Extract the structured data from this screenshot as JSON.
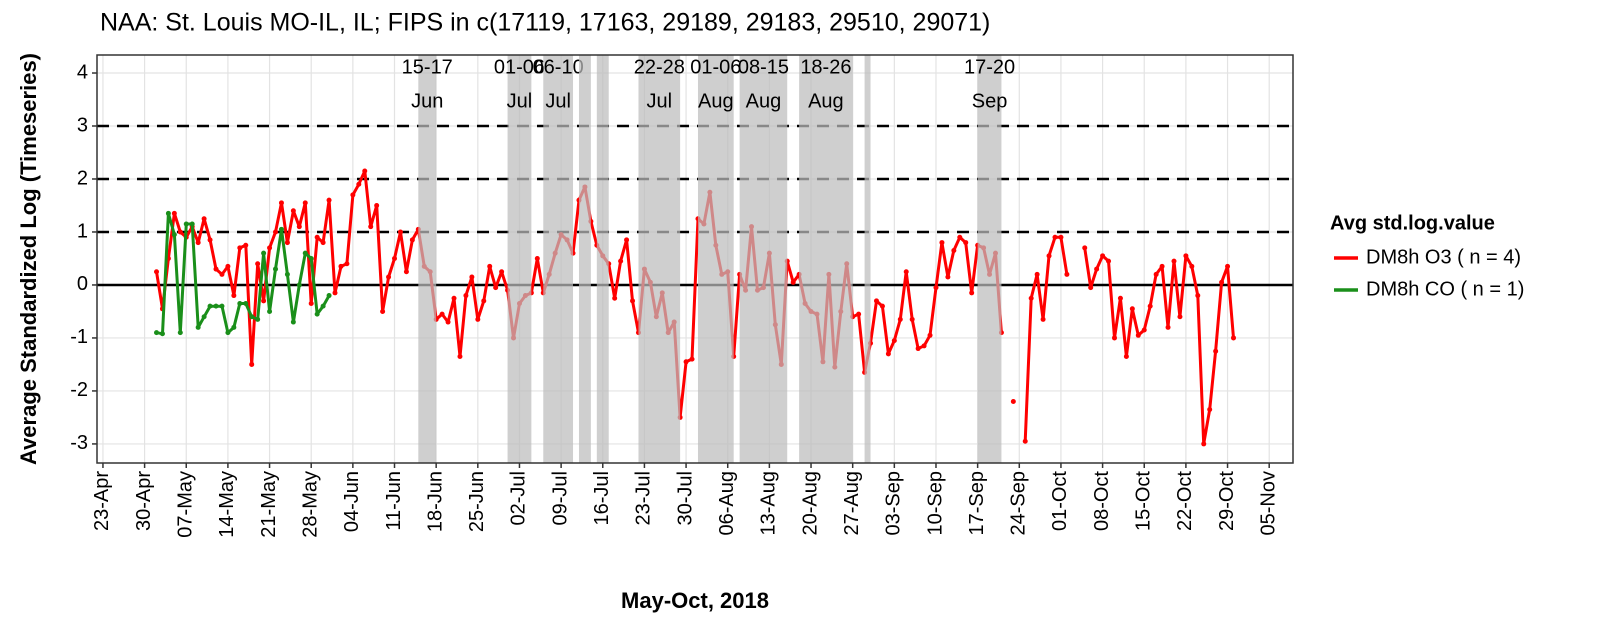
{
  "chart_data": {
    "type": "line",
    "title": "NAA: St. Louis MO-IL, IL; FIPS in c(17119, 17163, 29189, 29183, 29510, 29071)",
    "x_label": "May-Oct, 2018",
    "y_label": "Average Standardized Log (Timeseries)",
    "legend_title": "Avg std.log.value",
    "legend_position": "right",
    "grid": true,
    "xlim": [
      "04-22",
      "11-09"
    ],
    "ylim": [
      -3.36,
      4.34
    ],
    "yticks": [
      -3,
      -2,
      -1,
      0,
      1,
      2,
      3,
      4
    ],
    "xticks": [
      {
        "value": "04-23",
        "label": "23-Apr"
      },
      {
        "value": "04-30",
        "label": "30-Apr"
      },
      {
        "value": "05-07",
        "label": "07-May"
      },
      {
        "value": "05-14",
        "label": "14-May"
      },
      {
        "value": "05-21",
        "label": "21-May"
      },
      {
        "value": "05-28",
        "label": "28-May"
      },
      {
        "value": "06-04",
        "label": "04-Jun"
      },
      {
        "value": "06-11",
        "label": "11-Jun"
      },
      {
        "value": "06-18",
        "label": "18-Jun"
      },
      {
        "value": "06-25",
        "label": "25-Jun"
      },
      {
        "value": "07-02",
        "label": "02-Jul"
      },
      {
        "value": "07-09",
        "label": "09-Jul"
      },
      {
        "value": "07-16",
        "label": "16-Jul"
      },
      {
        "value": "07-23",
        "label": "23-Jul"
      },
      {
        "value": "07-30",
        "label": "30-Jul"
      },
      {
        "value": "08-06",
        "label": "06-Aug"
      },
      {
        "value": "08-13",
        "label": "13-Aug"
      },
      {
        "value": "08-20",
        "label": "20-Aug"
      },
      {
        "value": "08-27",
        "label": "27-Aug"
      },
      {
        "value": "09-03",
        "label": "03-Sep"
      },
      {
        "value": "09-10",
        "label": "10-Sep"
      },
      {
        "value": "09-17",
        "label": "17-Sep"
      },
      {
        "value": "09-24",
        "label": "24-Sep"
      },
      {
        "value": "10-01",
        "label": "01-Oct"
      },
      {
        "value": "10-08",
        "label": "08-Oct"
      },
      {
        "value": "10-15",
        "label": "15-Oct"
      },
      {
        "value": "10-22",
        "label": "22-Oct"
      },
      {
        "value": "10-29",
        "label": "29-Oct"
      },
      {
        "value": "11-05",
        "label": "05-Nov"
      }
    ],
    "reference_lines": {
      "solid": [
        0
      ],
      "dashed": [
        1,
        2,
        3
      ]
    },
    "bands": [
      {
        "start": "06-15",
        "end": "06-17",
        "range": "15-17",
        "month": "Jun"
      },
      {
        "start": "06-30",
        "end": "07-03",
        "range": "01-06",
        "month": "Jul"
      },
      {
        "start": "07-06",
        "end": "07-10",
        "range": "06-10",
        "month": "Jul"
      },
      {
        "start": "07-12",
        "end": "07-13",
        "range": null,
        "month": null
      },
      {
        "start": "07-15",
        "end": "07-16",
        "range": null,
        "month": null
      },
      {
        "start": "07-22",
        "end": "07-28",
        "range": "22-28",
        "month": "Jul"
      },
      {
        "start": "08-01",
        "end": "08-06",
        "range": "01-06",
        "month": "Aug"
      },
      {
        "start": "08-08",
        "end": "08-15",
        "range": "08-15",
        "month": "Aug"
      },
      {
        "start": "08-18",
        "end": "08-26",
        "range": "18-26",
        "month": "Aug"
      },
      {
        "start": "08-29",
        "end": "08-29",
        "range": null,
        "month": null
      },
      {
        "start": "09-17",
        "end": "09-20",
        "range": "17-20",
        "month": "Sep"
      }
    ],
    "series": [
      {
        "name": "DM8h O3 ( n = 4)",
        "color": "#ff0000",
        "x": [
          "05-02",
          "05-03",
          "05-04",
          "05-05",
          "05-06",
          "05-07",
          "05-08",
          "05-09",
          "05-10",
          "05-11",
          "05-12",
          "05-13",
          "05-14",
          "05-15",
          "05-16",
          "05-17",
          "05-18",
          "05-19",
          "05-20",
          "05-21",
          "05-22",
          "05-23",
          "05-24",
          "05-25",
          "05-26",
          "05-27",
          "05-28",
          "05-29",
          "05-30",
          "05-31",
          "06-01",
          "06-02",
          "06-03",
          "06-04",
          "06-05",
          "06-06",
          "06-07",
          "06-08",
          "06-09",
          "06-10",
          "06-11",
          "06-12",
          "06-13",
          "06-14",
          "06-15",
          "06-16",
          "06-17",
          "06-18",
          "06-19",
          "06-20",
          "06-21",
          "06-22",
          "06-23",
          "06-24",
          "06-25",
          "06-26",
          "06-27",
          "06-28",
          "06-29",
          "06-30",
          "07-01",
          "07-02",
          "07-03",
          "07-04",
          "07-05",
          "07-06",
          "07-07",
          "07-08",
          "07-09",
          "07-10",
          "07-11",
          "07-12",
          "07-13",
          "07-14",
          "07-15",
          "07-16",
          "07-17",
          "07-18",
          "07-19",
          "07-20",
          "07-21",
          "07-22",
          "07-23",
          "07-24",
          "07-25",
          "07-26",
          "07-27",
          "07-28",
          "07-29",
          "07-30",
          "07-31",
          "08-01",
          "08-02",
          "08-03",
          "08-04",
          "08-05",
          "08-06",
          "08-07",
          "08-08",
          "08-09",
          "08-10",
          "08-11",
          "08-12",
          "08-13",
          "08-14",
          "08-15",
          "08-16",
          "08-17",
          "08-18",
          "08-19",
          "08-20",
          "08-21",
          "08-22",
          "08-23",
          "08-24",
          "08-25",
          "08-26",
          "08-27",
          "08-28",
          "08-29",
          "08-30",
          "08-31",
          "09-01",
          "09-02",
          "09-03",
          "09-04",
          "09-05",
          "09-06",
          "09-07",
          "09-08",
          "09-09",
          "09-10",
          "09-11",
          "09-12",
          "09-13",
          "09-14",
          "09-15",
          "09-16",
          "09-17",
          "09-18",
          "09-19",
          "09-20",
          "09-21",
          "09-22",
          "09-23",
          "09-24",
          "09-25",
          "09-26",
          "09-27",
          "09-28",
          "09-29",
          "09-30",
          "10-01",
          "10-02",
          "10-03",
          "10-04",
          "10-05",
          "10-06",
          "10-07",
          "10-08",
          "10-09",
          "10-10",
          "10-11",
          "10-12",
          "10-13",
          "10-14",
          "10-15",
          "10-16",
          "10-17",
          "10-18",
          "10-19",
          "10-20",
          "10-21",
          "10-22",
          "10-23",
          "10-24",
          "10-25",
          "10-26",
          "10-27",
          "10-28",
          "10-29",
          "10-30"
        ],
        "values": [
          0.25,
          -0.45,
          0.5,
          1.35,
          1.0,
          0.9,
          1.1,
          0.8,
          1.25,
          0.85,
          0.3,
          0.2,
          0.35,
          -0.2,
          0.7,
          0.75,
          -1.5,
          0.4,
          -0.3,
          0.7,
          1.0,
          1.55,
          0.8,
          1.4,
          1.1,
          1.55,
          -0.35,
          0.9,
          0.8,
          1.6,
          -0.15,
          0.35,
          0.4,
          1.7,
          1.9,
          2.15,
          1.1,
          1.5,
          -0.5,
          0.15,
          0.5,
          1.0,
          0.25,
          0.85,
          1.05,
          0.35,
          0.25,
          -0.65,
          -0.55,
          -0.7,
          -0.25,
          -1.35,
          -0.2,
          0.15,
          -0.65,
          -0.3,
          0.35,
          -0.05,
          0.25,
          -0.1,
          -1.0,
          -0.35,
          -0.2,
          -0.15,
          0.5,
          -0.15,
          0.2,
          0.6,
          0.95,
          0.85,
          0.6,
          1.6,
          1.85,
          1.2,
          0.75,
          0.55,
          0.4,
          -0.25,
          0.45,
          0.85,
          -0.3,
          -0.9,
          0.3,
          0.05,
          -0.6,
          -0.15,
          -0.9,
          -0.7,
          -2.5,
          -1.45,
          -1.4,
          1.25,
          1.15,
          1.75,
          0.75,
          0.2,
          0.25,
          -1.35,
          0.2,
          -0.1,
          1.1,
          -0.1,
          -0.05,
          0.6,
          -0.75,
          -1.5,
          0.45,
          0.05,
          0.2,
          -0.35,
          -0.5,
          -0.55,
          -1.45,
          0.2,
          -1.55,
          -0.5,
          0.4,
          -0.6,
          -0.55,
          -1.65,
          -1.1,
          -0.3,
          -0.4,
          -1.3,
          -1.05,
          -0.65,
          0.25,
          -0.65,
          -1.2,
          -1.15,
          -0.95,
          -0.05,
          0.8,
          0.15,
          0.65,
          0.9,
          0.8,
          -0.15,
          0.75,
          0.7,
          0.2,
          0.6,
          -0.9,
          null,
          -2.2,
          null,
          -2.95,
          -0.25,
          0.2,
          -0.65,
          0.55,
          0.9,
          0.9,
          0.2,
          null,
          null,
          0.7,
          -0.05,
          0.3,
          0.55,
          0.45,
          -1.0,
          -0.25,
          -1.35,
          -0.45,
          -0.95,
          -0.85,
          -0.4,
          0.2,
          0.35,
          -0.8,
          0.45,
          -0.6,
          0.55,
          0.35,
          -0.2,
          -3.0,
          -2.35,
          -1.25,
          0.05,
          0.35,
          -1.0
        ]
      },
      {
        "name": "DM8h CO ( n = 1)",
        "color": "#1a8f1a",
        "x": [
          "05-02",
          "05-03",
          "05-04",
          "05-05",
          "05-06",
          "05-07",
          "05-08",
          "05-09",
          "05-10",
          "05-11",
          "05-12",
          "05-13",
          "05-14",
          "05-15",
          "05-16",
          "05-17",
          "05-18",
          "05-19",
          "05-20",
          "05-21",
          "05-22",
          "05-23",
          "05-24",
          "05-25",
          "05-26",
          "05-27",
          "05-28",
          "05-29",
          "05-30",
          "05-31"
        ],
        "values": [
          -0.9,
          -0.92,
          1.35,
          0.95,
          -0.9,
          1.15,
          1.15,
          -0.8,
          -0.6,
          -0.4,
          -0.4,
          -0.4,
          -0.9,
          -0.8,
          -0.35,
          -0.35,
          -0.6,
          -0.65,
          0.6,
          -0.5,
          0.3,
          1.05,
          0.2,
          -0.7,
          0.0,
          0.6,
          0.5,
          -0.55,
          -0.4,
          -0.2
        ]
      }
    ]
  }
}
